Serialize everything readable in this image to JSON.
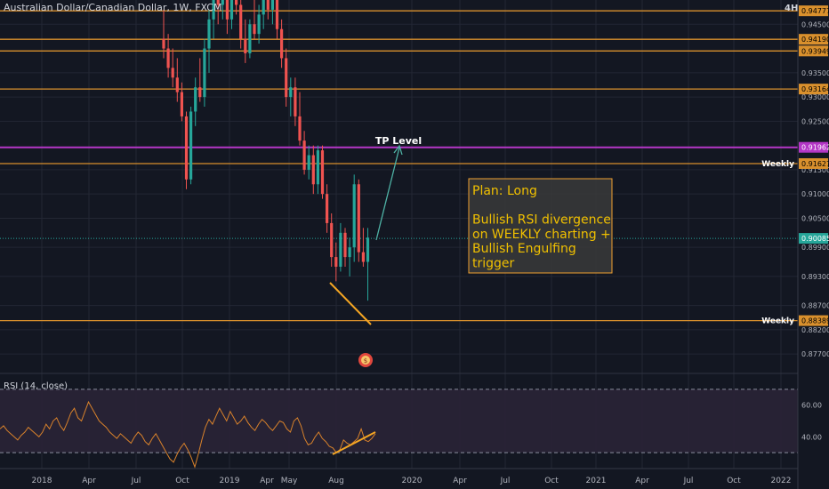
{
  "header": {
    "title": "Australian Dollar/Canadian Dollar, 1W, FXCM",
    "timeframe_badge": "4H"
  },
  "colors": {
    "background": "#131722",
    "grid": "#232734",
    "up": "#26a69a",
    "down": "#ef5350",
    "horizontal_level": "#d9902d",
    "tp_level": "#b436c6",
    "rsi": "#d9822b",
    "rsi_band": "#2a2436",
    "annotation_text": "#f0c000",
    "arrow": "#4fb3a6"
  },
  "price_axis": {
    "ticks": [
      "0.94500",
      "0.93500",
      "0.93000",
      "0.92500",
      "0.91500",
      "0.91000",
      "0.90500",
      "0.89900",
      "0.89300",
      "0.88700",
      "0.88200",
      "0.87700"
    ],
    "badges": [
      {
        "value": "0.94777",
        "color": "#d9902d",
        "text_color": "#000000"
      },
      {
        "value": "0.94190",
        "color": "#d9902d",
        "text_color": "#000000"
      },
      {
        "value": "0.93949",
        "color": "#d9902d",
        "text_color": "#000000"
      },
      {
        "value": "0.93164",
        "color": "#d9902d",
        "text_color": "#000000"
      },
      {
        "value": "0.91962",
        "color": "#b436c6",
        "text_color": "#ffffff"
      },
      {
        "value": "0.91627",
        "color": "#d9902d",
        "text_color": "#000000"
      },
      {
        "value": "0.90085",
        "color": "#26a69a",
        "text_color": "#ffffff"
      },
      {
        "value": "0.88389",
        "color": "#d9902d",
        "text_color": "#000000"
      }
    ],
    "level_labels": [
      {
        "value": "0.91627",
        "text": "Weekly"
      },
      {
        "value": "0.88389",
        "text": "Weekly"
      }
    ]
  },
  "time_axis": [
    "2018",
    "Apr",
    "Jul",
    "Oct",
    "2019",
    "Apr",
    "May",
    "Aug",
    "2020",
    "Apr",
    "Jul",
    "Oct",
    "2021",
    "Apr",
    "Jul",
    "Oct",
    "2022"
  ],
  "annotations": {
    "tp_label": "TP Level",
    "plan_text": [
      "Plan: Long",
      "",
      "Bullish RSI divergence",
      "on WEEKLY charting +",
      "Bullish Engulfing",
      "trigger"
    ]
  },
  "rsi": {
    "label": "RSI (14, close)",
    "ticks": [
      "60.00",
      "40.00"
    ],
    "upper": 70,
    "lower": 30,
    "values": [
      45,
      47,
      44,
      42,
      40,
      38,
      41,
      43,
      46,
      44,
      42,
      40,
      43,
      48,
      45,
      50,
      52,
      47,
      44,
      49,
      55,
      58,
      52,
      50,
      56,
      62,
      58,
      54,
      50,
      48,
      46,
      43,
      41,
      39,
      42,
      40,
      38,
      36,
      40,
      43,
      41,
      37,
      35,
      39,
      42,
      38,
      34,
      30,
      26,
      24,
      29,
      33,
      36,
      32,
      27,
      21,
      29,
      38,
      46,
      51,
      48,
      53,
      58,
      54,
      50,
      56,
      52,
      48,
      50,
      53,
      49,
      46,
      44,
      48,
      51,
      49,
      46,
      44,
      47,
      50,
      49,
      45,
      43,
      50,
      52,
      47,
      39,
      35,
      36,
      40,
      43,
      39,
      37,
      34,
      33,
      30,
      32,
      38,
      36,
      35,
      37,
      39,
      45,
      38,
      37,
      39,
      42
    ]
  },
  "chart_data": {
    "type": "candlestick",
    "title": "Australian Dollar/Canadian Dollar, 1W, FXCM",
    "y_range": [
      0.873,
      0.95
    ],
    "horizontal_levels": [
      0.94777,
      0.9419,
      0.93949,
      0.93164,
      0.91962,
      0.91627,
      0.88389
    ],
    "current_price": 0.90085,
    "candles": [
      {
        "o": 0.942,
        "h": 0.948,
        "l": 0.938,
        "c": 0.94
      },
      {
        "o": 0.94,
        "h": 0.943,
        "l": 0.934,
        "c": 0.936
      },
      {
        "o": 0.936,
        "h": 0.94,
        "l": 0.932,
        "c": 0.934
      },
      {
        "o": 0.934,
        "h": 0.938,
        "l": 0.929,
        "c": 0.931
      },
      {
        "o": 0.931,
        "h": 0.933,
        "l": 0.925,
        "c": 0.926
      },
      {
        "o": 0.926,
        "h": 0.927,
        "l": 0.911,
        "c": 0.913
      },
      {
        "o": 0.913,
        "h": 0.928,
        "l": 0.912,
        "c": 0.927
      },
      {
        "o": 0.927,
        "h": 0.934,
        "l": 0.924,
        "c": 0.932
      },
      {
        "o": 0.932,
        "h": 0.938,
        "l": 0.929,
        "c": 0.93
      },
      {
        "o": 0.93,
        "h": 0.942,
        "l": 0.928,
        "c": 0.94
      },
      {
        "o": 0.94,
        "h": 0.948,
        "l": 0.935,
        "c": 0.946
      },
      {
        "o": 0.946,
        "h": 0.952,
        "l": 0.942,
        "c": 0.95
      },
      {
        "o": 0.95,
        "h": 0.952,
        "l": 0.945,
        "c": 0.949
      },
      {
        "o": 0.949,
        "h": 0.952,
        "l": 0.946,
        "c": 0.951
      },
      {
        "o": 0.95,
        "h": 0.952,
        "l": 0.943,
        "c": 0.946
      },
      {
        "o": 0.946,
        "h": 0.952,
        "l": 0.944,
        "c": 0.951
      },
      {
        "o": 0.95,
        "h": 0.952,
        "l": 0.947,
        "c": 0.949
      },
      {
        "o": 0.949,
        "h": 0.952,
        "l": 0.94,
        "c": 0.942
      },
      {
        "o": 0.942,
        "h": 0.946,
        "l": 0.937,
        "c": 0.939
      },
      {
        "o": 0.939,
        "h": 0.946,
        "l": 0.938,
        "c": 0.945
      },
      {
        "o": 0.945,
        "h": 0.95,
        "l": 0.942,
        "c": 0.943
      },
      {
        "o": 0.943,
        "h": 0.949,
        "l": 0.941,
        "c": 0.947
      },
      {
        "o": 0.947,
        "h": 0.951,
        "l": 0.944,
        "c": 0.95
      },
      {
        "o": 0.95,
        "h": 0.952,
        "l": 0.946,
        "c": 0.948
      },
      {
        "o": 0.948,
        "h": 0.952,
        "l": 0.945,
        "c": 0.951
      },
      {
        "o": 0.95,
        "h": 0.951,
        "l": 0.942,
        "c": 0.944
      },
      {
        "o": 0.944,
        "h": 0.946,
        "l": 0.936,
        "c": 0.938
      },
      {
        "o": 0.938,
        "h": 0.94,
        "l": 0.928,
        "c": 0.93
      },
      {
        "o": 0.93,
        "h": 0.934,
        "l": 0.926,
        "c": 0.932
      },
      {
        "o": 0.932,
        "h": 0.934,
        "l": 0.924,
        "c": 0.926
      },
      {
        "o": 0.926,
        "h": 0.931,
        "l": 0.92,
        "c": 0.921
      },
      {
        "o": 0.921,
        "h": 0.923,
        "l": 0.914,
        "c": 0.915
      },
      {
        "o": 0.915,
        "h": 0.92,
        "l": 0.913,
        "c": 0.918
      },
      {
        "o": 0.918,
        "h": 0.92,
        "l": 0.91,
        "c": 0.912
      },
      {
        "o": 0.912,
        "h": 0.92,
        "l": 0.91,
        "c": 0.919
      },
      {
        "o": 0.919,
        "h": 0.92,
        "l": 0.909,
        "c": 0.91
      },
      {
        "o": 0.91,
        "h": 0.912,
        "l": 0.902,
        "c": 0.904
      },
      {
        "o": 0.904,
        "h": 0.906,
        "l": 0.895,
        "c": 0.897
      },
      {
        "o": 0.897,
        "h": 0.9,
        "l": 0.892,
        "c": 0.895
      },
      {
        "o": 0.895,
        "h": 0.904,
        "l": 0.894,
        "c": 0.902
      },
      {
        "o": 0.902,
        "h": 0.903,
        "l": 0.895,
        "c": 0.897
      },
      {
        "o": 0.897,
        "h": 0.901,
        "l": 0.893,
        "c": 0.899
      },
      {
        "o": 0.899,
        "h": 0.914,
        "l": 0.896,
        "c": 0.912
      },
      {
        "o": 0.912,
        "h": 0.913,
        "l": 0.896,
        "c": 0.898
      },
      {
        "o": 0.898,
        "h": 0.903,
        "l": 0.895,
        "c": 0.896
      },
      {
        "o": 0.896,
        "h": 0.903,
        "l": 0.888,
        "c": 0.901
      }
    ]
  }
}
